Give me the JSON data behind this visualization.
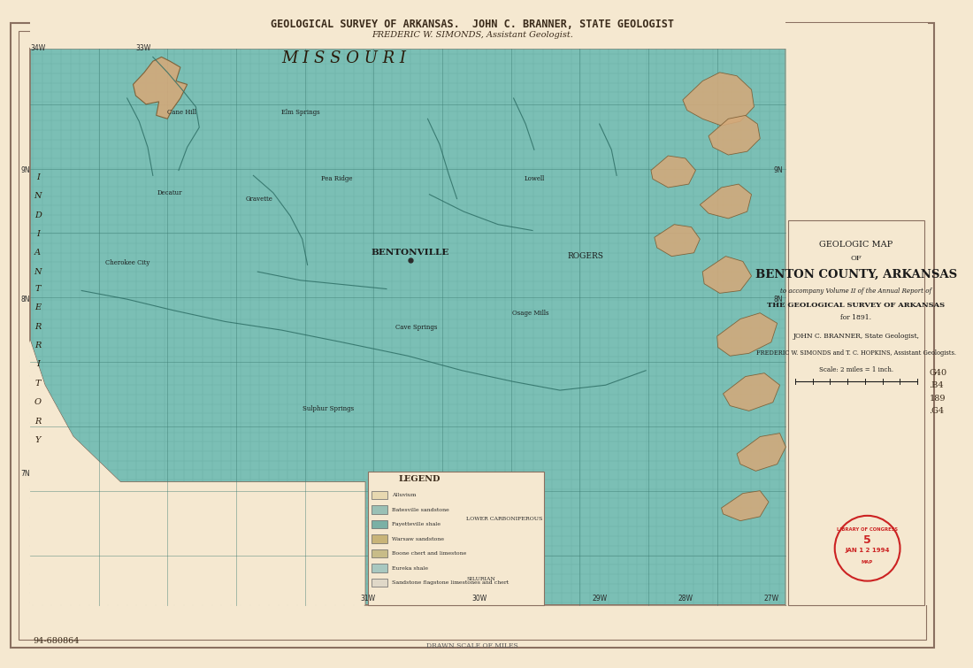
{
  "bg_color": "#f5e8d0",
  "map_bg_color": "#7bbfb5",
  "map_grid_color": "#5a9e94",
  "limestone_color": "#d4a97a",
  "border_color": "#8a7060",
  "title_line1": "GEOLOGICAL SURVEY OF ARKANSAS.  JOHN C. BRANNER, STATE GEOLOGIST",
  "title_line2": "FREDERIC W. SIMONDS, Assistant Geologist.",
  "map_title1": "GEOLOGIC MAP",
  "map_title2": "OF",
  "map_title3": "BENTON COUNTY, ARKANSAS",
  "map_title4": "to accompany Volume II of the Annual Report of",
  "map_title5": "THE GEOLOGICAL SURVEY OF ARKANSAS",
  "map_title6": "for 1891.",
  "map_title7": "JOHN C. BRANNER, State Geologist,",
  "map_title8": "FREDERIC W. SIMONDS and T. C. HOPKINS, Assistant Geologists.",
  "map_title9": "Scale: 2 miles = 1 inch.",
  "missouri_label": "M I S S O U R I",
  "legend_title": "LEGEND",
  "stamp_color": "#cc2222",
  "catalog_text": "94-680864",
  "notes_right": "G40\n.B4\n189\n.G4"
}
